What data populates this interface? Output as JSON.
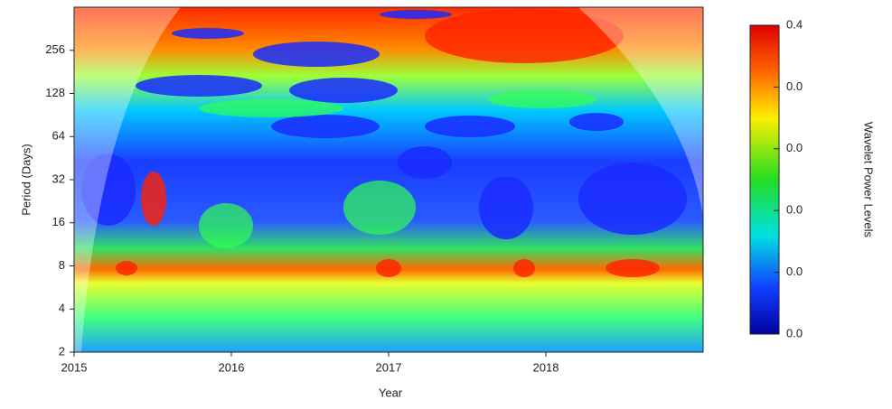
{
  "chart_data": {
    "type": "heatmap",
    "xlabel": "Year",
    "ylabel": "Period (Days)",
    "colorbar_label": "Wavelet Power Levels",
    "xlim": [
      2015,
      2019
    ],
    "xticks": [
      2015,
      2016,
      2017,
      2018
    ],
    "ylim": [
      2,
      512
    ],
    "yticks": [
      2,
      4,
      8,
      16,
      32,
      64,
      128,
      256
    ],
    "ylog": true,
    "colorbar_ticks": [
      "0.4",
      "0.0",
      "0.0",
      "0.0",
      "0.0",
      "0.0"
    ]
  }
}
